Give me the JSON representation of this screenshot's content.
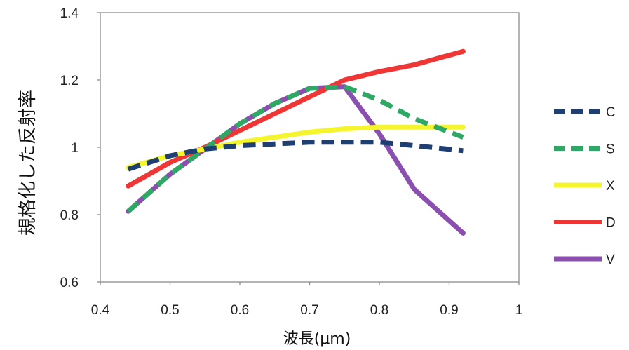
{
  "chart_data": {
    "type": "line",
    "xlabel": "波長(μm)",
    "ylabel": "規格化した反射率",
    "xlim": [
      0.4,
      1.0
    ],
    "ylim": [
      0.6,
      1.4
    ],
    "xticks": [
      "0.4",
      "0.5",
      "0.6",
      "0.7",
      "0.8",
      "0.9",
      "1"
    ],
    "yticks": [
      "0.6",
      "0.8",
      "1",
      "1.2",
      "1.4"
    ],
    "grid": false,
    "legend_position": "right",
    "series": [
      {
        "name": "V",
        "color": "#8b4fb0",
        "dash": false,
        "x": [
          0.44,
          0.5,
          0.55,
          0.6,
          0.65,
          0.7,
          0.75,
          0.8,
          0.85,
          0.92
        ],
        "y": [
          0.81,
          0.92,
          0.995,
          1.07,
          1.13,
          1.175,
          1.18,
          1.04,
          0.875,
          0.745
        ]
      },
      {
        "name": "D",
        "color": "#f03535",
        "dash": false,
        "x": [
          0.44,
          0.5,
          0.55,
          0.6,
          0.65,
          0.7,
          0.75,
          0.8,
          0.85,
          0.92
        ],
        "y": [
          0.885,
          0.955,
          1.0,
          1.05,
          1.1,
          1.15,
          1.2,
          1.225,
          1.245,
          1.285
        ]
      },
      {
        "name": "X",
        "color": "#f5f52d",
        "dash": false,
        "x": [
          0.44,
          0.5,
          0.55,
          0.6,
          0.65,
          0.7,
          0.75,
          0.8,
          0.85,
          0.92
        ],
        "y": [
          0.94,
          0.975,
          0.995,
          1.015,
          1.03,
          1.045,
          1.055,
          1.06,
          1.06,
          1.06
        ]
      },
      {
        "name": "S",
        "color": "#2fa866",
        "dash": true,
        "x": [
          0.44,
          0.5,
          0.55,
          0.6,
          0.65,
          0.7,
          0.75,
          0.8,
          0.85,
          0.92
        ],
        "y": [
          0.81,
          0.92,
          0.995,
          1.07,
          1.13,
          1.175,
          1.18,
          1.14,
          1.085,
          1.03
        ]
      },
      {
        "name": "C",
        "color": "#1f3f73",
        "dash": true,
        "x": [
          0.44,
          0.5,
          0.55,
          0.6,
          0.65,
          0.7,
          0.75,
          0.8,
          0.85,
          0.92
        ],
        "y": [
          0.935,
          0.975,
          0.995,
          1.005,
          1.01,
          1.015,
          1.015,
          1.015,
          1.005,
          0.99
        ]
      }
    ],
    "legend_order": [
      "C",
      "S",
      "X",
      "D",
      "V"
    ]
  }
}
